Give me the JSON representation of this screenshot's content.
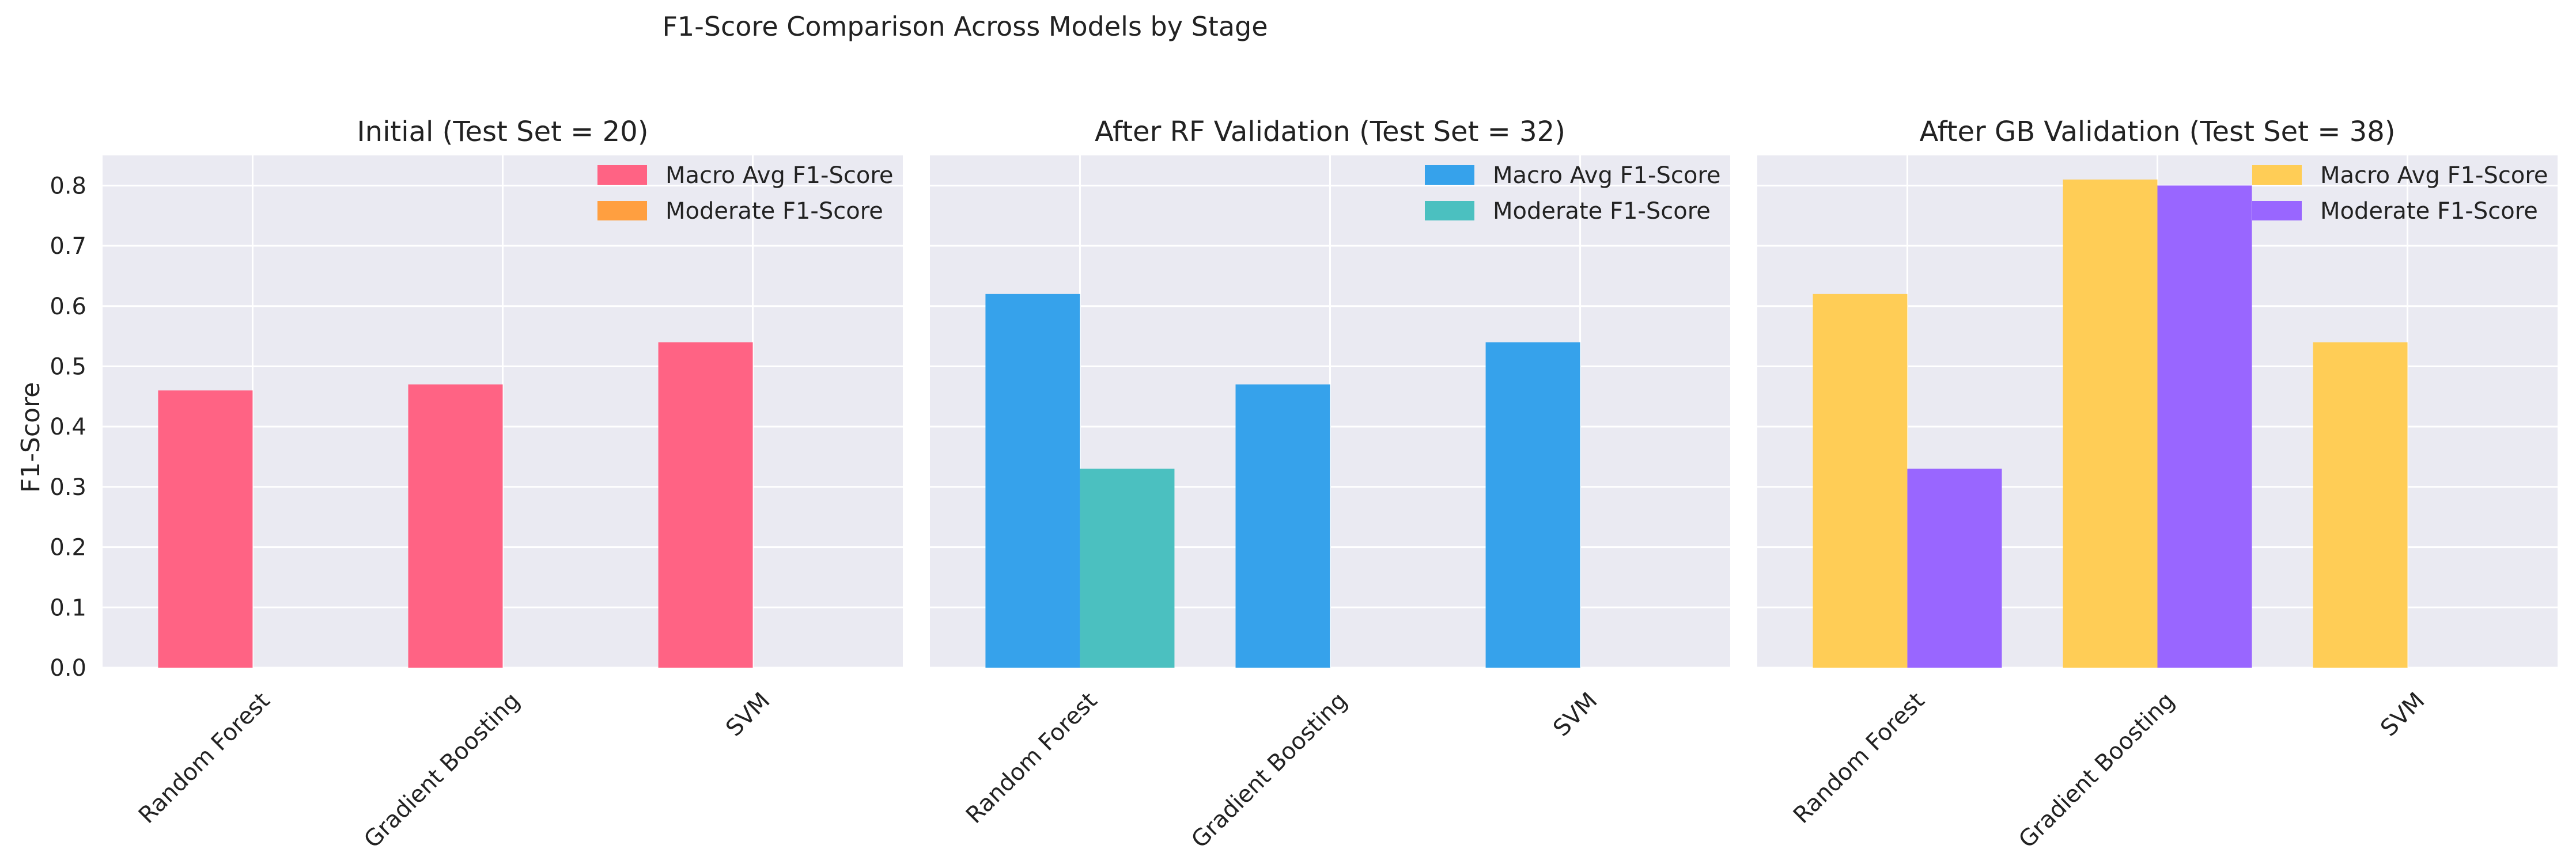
{
  "figure": {
    "suptitle": "F1-Score Comparison Across Models by Stage",
    "ylabel": "F1-Score"
  },
  "chart_data": [
    {
      "type": "bar",
      "title": "Initial (Test Set = 20)",
      "xlabel": "",
      "ylabel": "F1-Score",
      "ylim": [
        0,
        0.85
      ],
      "yticks": [
        "0.0",
        "0.1",
        "0.2",
        "0.3",
        "0.4",
        "0.5",
        "0.6",
        "0.7",
        "0.8"
      ],
      "grid": true,
      "legend_position": "top-right",
      "categories": [
        "Random Forest",
        "Gradient Boosting",
        "SVM"
      ],
      "series": [
        {
          "name": "Macro Avg F1-Score",
          "values": [
            0.46,
            0.47,
            0.54
          ],
          "color": "#ff6384"
        },
        {
          "name": "Moderate F1-Score",
          "values": [
            0,
            0,
            0
          ],
          "color": "#ff9f40"
        }
      ]
    },
    {
      "type": "bar",
      "title": "After RF Validation (Test Set = 32)",
      "xlabel": "",
      "ylabel": "",
      "ylim": [
        0,
        0.85
      ],
      "yticks": [],
      "grid": true,
      "legend_position": "top-right",
      "categories": [
        "Random Forest",
        "Gradient Boosting",
        "SVM"
      ],
      "series": [
        {
          "name": "Macro Avg F1-Score",
          "values": [
            0.62,
            0.47,
            0.54
          ],
          "color": "#36a2eb"
        },
        {
          "name": "Moderate F1-Score",
          "values": [
            0.33,
            0,
            0
          ],
          "color": "#4bc0c0"
        }
      ]
    },
    {
      "type": "bar",
      "title": "After GB Validation (Test Set = 38)",
      "xlabel": "",
      "ylabel": "",
      "ylim": [
        0,
        0.85
      ],
      "yticks": [],
      "grid": true,
      "legend_position": "top-right",
      "categories": [
        "Random Forest",
        "Gradient Boosting",
        "SVM"
      ],
      "series": [
        {
          "name": "Macro Avg F1-Score",
          "values": [
            0.62,
            0.81,
            0.54
          ],
          "color": "#ffcd56"
        },
        {
          "name": "Moderate F1-Score",
          "values": [
            0.33,
            0.8,
            0
          ],
          "color": "#9966ff"
        }
      ]
    }
  ]
}
